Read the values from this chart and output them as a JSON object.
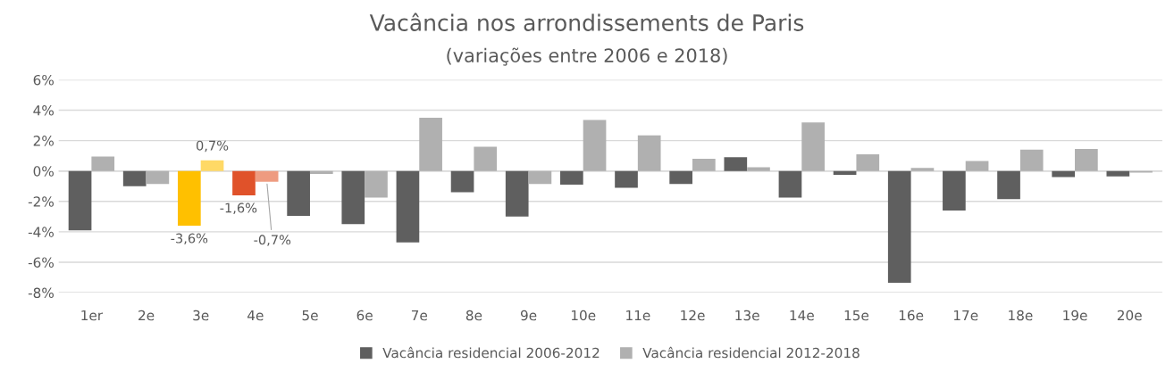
{
  "chart_data": {
    "type": "bar",
    "title": "Vacância nos arrondissements de Paris",
    "subtitle": "(variações entre 2006 e 2018)",
    "categories": [
      "1er",
      "2e",
      "3e",
      "4e",
      "5e",
      "6e",
      "7e",
      "8e",
      "9e",
      "10e",
      "11e",
      "12e",
      "13e",
      "14e",
      "15e",
      "16e",
      "17e",
      "18e",
      "19e",
      "20e"
    ],
    "series": [
      {
        "name": "Vacância residencial 2006-2012",
        "color": "#5f5f5f",
        "colors": [
          "#5f5f5f",
          "#5f5f5f",
          "#ffc000",
          "#e0522a",
          "#5f5f5f",
          "#5f5f5f",
          "#5f5f5f",
          "#5f5f5f",
          "#5f5f5f",
          "#5f5f5f",
          "#5f5f5f",
          "#5f5f5f",
          "#5f5f5f",
          "#5f5f5f",
          "#5f5f5f",
          "#5f5f5f",
          "#5f5f5f",
          "#5f5f5f",
          "#5f5f5f",
          "#5f5f5f"
        ],
        "values": [
          -3.9,
          -1.0,
          -3.6,
          -1.6,
          -2.95,
          -3.5,
          -4.7,
          -1.4,
          -3.0,
          -0.9,
          -1.1,
          -0.85,
          0.9,
          -1.75,
          -0.25,
          -7.35,
          -2.6,
          -1.85,
          -0.4,
          -0.35
        ],
        "value_labels": [
          null,
          null,
          "-3,6%",
          "-1,6%",
          null,
          null,
          null,
          null,
          null,
          null,
          null,
          null,
          null,
          null,
          null,
          null,
          null,
          null,
          null,
          null
        ]
      },
      {
        "name": "Vacância residencial 2012-2018",
        "color": "#b0b0b0",
        "colors": [
          "#b0b0b0",
          "#b0b0b0",
          "#ffd966",
          "#ee9b80",
          "#b0b0b0",
          "#b0b0b0",
          "#b0b0b0",
          "#b0b0b0",
          "#b0b0b0",
          "#b0b0b0",
          "#b0b0b0",
          "#b0b0b0",
          "#b0b0b0",
          "#b0b0b0",
          "#b0b0b0",
          "#b0b0b0",
          "#b0b0b0",
          "#b0b0b0",
          "#b0b0b0",
          "#b0b0b0"
        ],
        "values": [
          0.95,
          -0.85,
          0.7,
          -0.7,
          -0.2,
          -1.75,
          3.5,
          1.6,
          -0.85,
          3.35,
          2.35,
          0.8,
          0.25,
          3.2,
          1.1,
          0.2,
          0.65,
          1.4,
          1.45,
          -0.1
        ],
        "value_labels": [
          null,
          null,
          "0,7%",
          "-0,7%",
          null,
          null,
          null,
          null,
          null,
          null,
          null,
          null,
          null,
          null,
          null,
          null,
          null,
          null,
          null,
          null
        ]
      }
    ],
    "ylim": [
      -8,
      6
    ],
    "yticks": [
      {
        "value": -8,
        "label": "-8%"
      },
      {
        "value": -6,
        "label": "-6%"
      },
      {
        "value": -4,
        "label": "-4%"
      },
      {
        "value": -2,
        "label": "-2%"
      },
      {
        "value": 0,
        "label": "0%"
      },
      {
        "value": 2,
        "label": "2%"
      },
      {
        "value": 4,
        "label": "4%"
      },
      {
        "value": 6,
        "label": "6%"
      }
    ],
    "grid": "y",
    "legend": "bottom"
  }
}
